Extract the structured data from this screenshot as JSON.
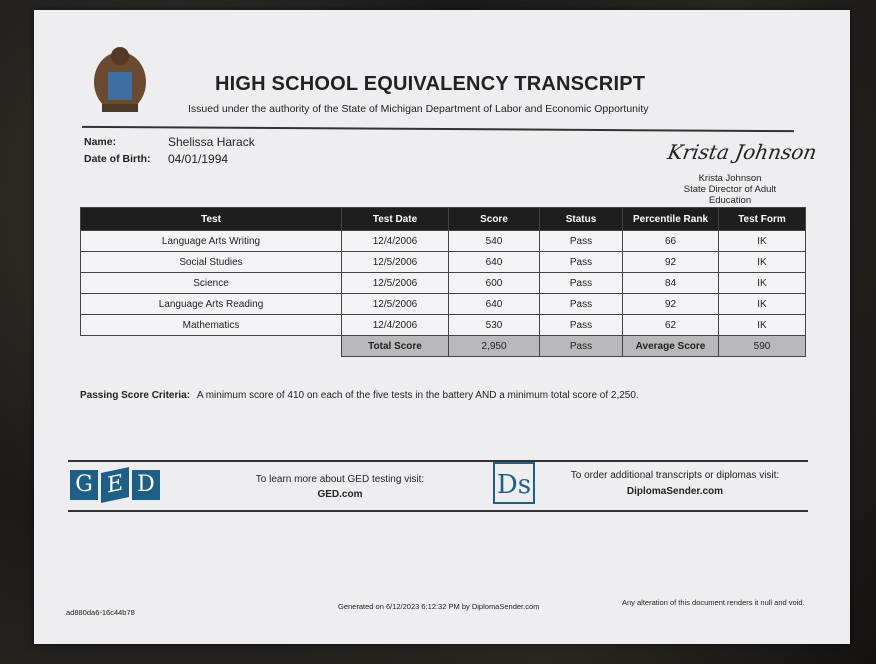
{
  "header": {
    "title": "HIGH SCHOOL EQUIVALENCY TRANSCRIPT",
    "subtitle": "Issued under the authority of the State of Michigan Department of Labor and Economic Opportunity"
  },
  "student": {
    "name_label": "Name:",
    "name": "Shelissa Harack",
    "dob_label": "Date of Birth:",
    "dob": "04/01/1994"
  },
  "signature": {
    "script": "Krista Johnson",
    "name": "Krista Johnson",
    "title": "State Director of Adult Education"
  },
  "table": {
    "headers": [
      "Test",
      "Test Date",
      "Score",
      "Status",
      "Percentile Rank",
      "Test Form"
    ],
    "rows": [
      [
        "Language Arts Writing",
        "12/4/2006",
        "540",
        "Pass",
        "66",
        "IK"
      ],
      [
        "Social Studies",
        "12/5/2006",
        "640",
        "Pass",
        "92",
        "IK"
      ],
      [
        "Science",
        "12/5/2006",
        "600",
        "Pass",
        "84",
        "IK"
      ],
      [
        "Language Arts Reading",
        "12/5/2006",
        "640",
        "Pass",
        "92",
        "IK"
      ],
      [
        "Mathematics",
        "12/4/2006",
        "530",
        "Pass",
        "62",
        "IK"
      ]
    ],
    "total": {
      "label": "Total Score",
      "score": "2,950",
      "status": "Pass",
      "avg_label": "Average Score",
      "avg": "590"
    }
  },
  "criteria": {
    "label": "Passing Score Criteria:",
    "text": "A minimum score of 410 on each of the five tests in the battery AND a minimum total score of 2,250."
  },
  "footer": {
    "ged_logo": [
      "G",
      "E",
      "D"
    ],
    "ged_text": "To learn more about GED testing visit:",
    "ged_link": "GED.com",
    "ds_logo": "Ds",
    "ds_text": "To order additional transcripts or diplomas visit:",
    "ds_link": "DiplomaSender.com",
    "doc_id": "ad880da6-16c44b78",
    "generated": "Generated on 6/12/2023 6:12:32 PM by DiplomaSender.com",
    "notice": "Any alteration of this document renders it null and void."
  },
  "colors": {
    "brand_blue": "#1e5f86",
    "header_bg": "#1e1e1e",
    "total_bg": "#b9b9bb"
  }
}
